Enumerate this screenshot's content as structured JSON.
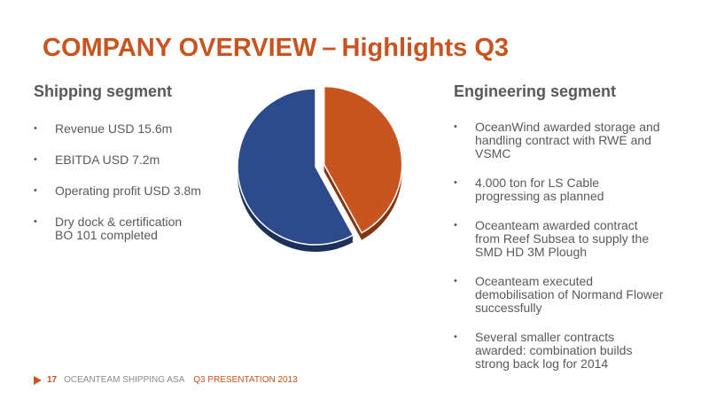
{
  "title": {
    "main": "COMPANY OVERVIEW",
    "separator": "–",
    "sub": "Highlights Q3"
  },
  "shipping": {
    "heading": "Shipping segment",
    "bullets": [
      [
        "Revenue USD 15.6m"
      ],
      [
        "EBITDA USD 7.2m"
      ],
      [
        "Operating profit USD 3.8m"
      ],
      [
        "Dry dock & certification",
        "BO 101 completed"
      ]
    ]
  },
  "engineering": {
    "heading": "Engineering segment",
    "bullets": [
      [
        "OceanWind awarded storage and",
        "handling contract with RWE and",
        "VSMC"
      ],
      [
        "4.000 ton for LS Cable",
        "progressing as planned"
      ],
      [
        "Oceanteam awarded contract",
        "from Reef Subsea to supply the",
        "SMD HD 3M Plough"
      ],
      [
        "Oceanteam executed",
        "demobilisation of Normand Flower",
        "successfully"
      ],
      [
        "Several smaller contracts",
        "awarded: combination builds",
        "strong back log for 2014"
      ]
    ]
  },
  "chart_data": {
    "type": "pie",
    "values": [
      58,
      42
    ],
    "colors": [
      "#2d4a8a",
      "#c8541f"
    ],
    "exploded_slice": 1
  },
  "footer": {
    "page_number": "17",
    "company": "OCEANTEAM SHIPPING ASA",
    "presentation": "Q3 PRESENTATION 2013"
  }
}
